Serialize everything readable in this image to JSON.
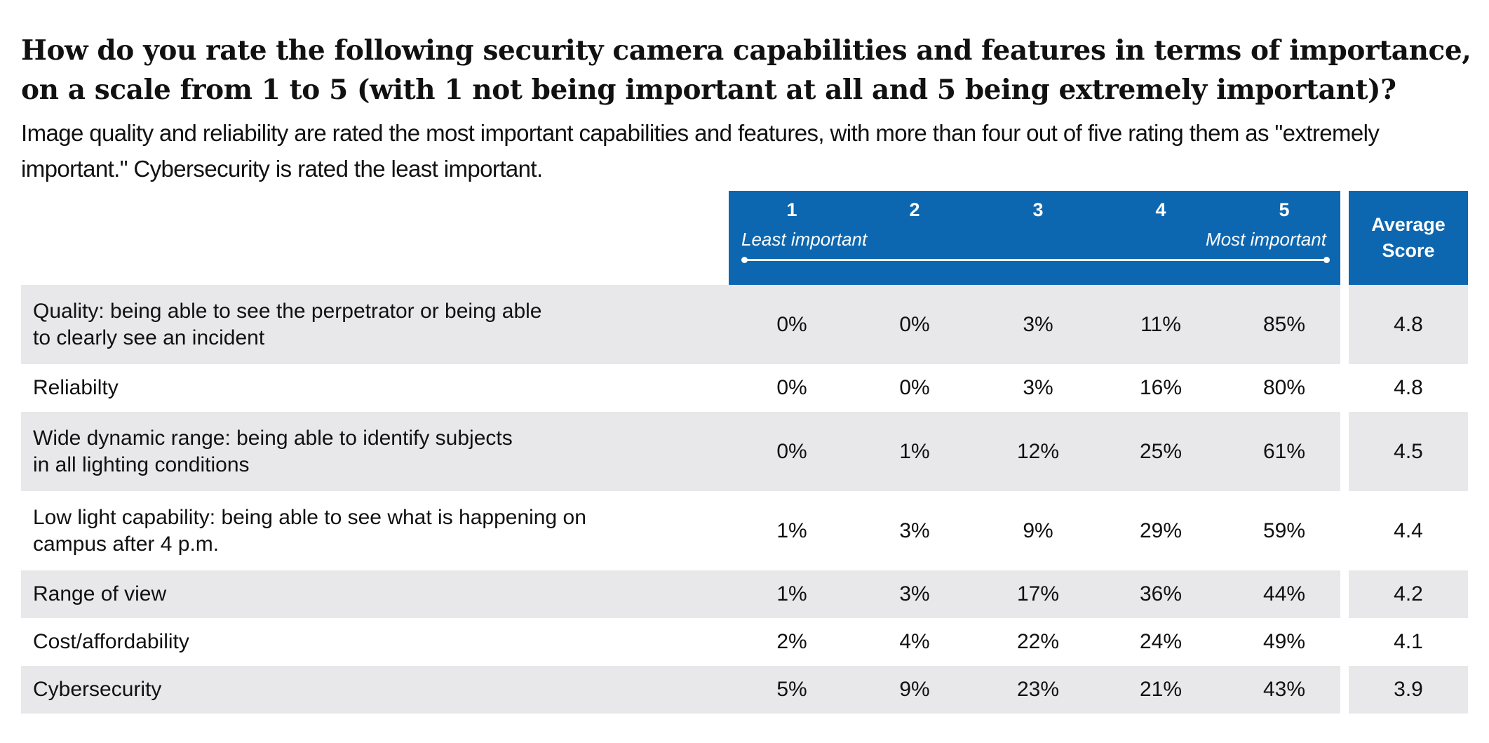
{
  "chart_data": {
    "type": "table",
    "title": "How do you rate the following security camera capabilities and features in terms of importance, on a scale from 1 to 5 (with 1 not being important at all and 5 being extremely important)?",
    "subtitle": "Image quality and reliability are rated the  most important capabilities and features, with more than four out of five rating them as \"extremely important.\" Cybersecurity is rated the least important.",
    "scale": {
      "columns": [
        "1",
        "2",
        "3",
        "4",
        "5"
      ],
      "low_label": "Least important",
      "high_label": "Most important"
    },
    "average_header": [
      "Average",
      "Score"
    ],
    "rows": [
      {
        "label": "Quality: being able to see the perpetrator or being able\nto clearly see an incident",
        "values": [
          "0%",
          "0%",
          "3%",
          "11%",
          "85%"
        ],
        "average": "4.8"
      },
      {
        "label": "Reliabilty",
        "values": [
          "0%",
          "0%",
          "3%",
          "16%",
          "80%"
        ],
        "average": "4.8"
      },
      {
        "label": "Wide dynamic range: being able to identify subjects\nin all lighting conditions",
        "values": [
          "0%",
          "1%",
          "12%",
          "25%",
          "61%"
        ],
        "average": "4.5"
      },
      {
        "label": "Low light capability: being able to see what is happening on\ncampus after 4 p.m.",
        "values": [
          "1%",
          "3%",
          "9%",
          "29%",
          "59%"
        ],
        "average": "4.4"
      },
      {
        "label": "Range of view",
        "values": [
          "1%",
          "3%",
          "17%",
          "36%",
          "44%"
        ],
        "average": "4.2"
      },
      {
        "label": "Cost/affordability",
        "values": [
          "2%",
          "4%",
          "22%",
          "24%",
          "49%"
        ],
        "average": "4.1"
      },
      {
        "label": "Cybersecurity",
        "values": [
          "5%",
          "9%",
          "23%",
          "21%",
          "43%"
        ],
        "average": "3.9"
      }
    ],
    "colors": {
      "header": "#0d67b0",
      "stripe": "#e8e8ea"
    }
  }
}
